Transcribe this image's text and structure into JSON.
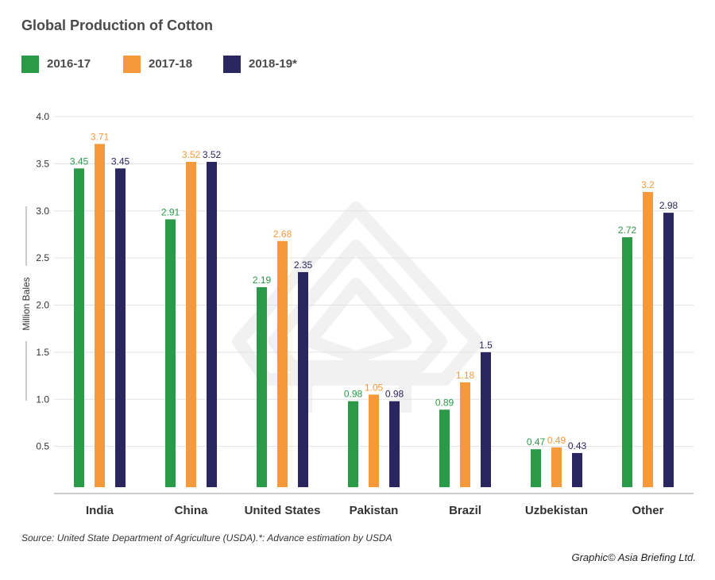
{
  "title": "Global Production of Cotton",
  "source": "Source: United State Department of Agriculture (USDA).*: Advance estimation by USDA",
  "credit": "Graphic© Asia Briefing Ltd.",
  "colors": {
    "series_1": "#2a9a48",
    "series_2": "#f6993a",
    "series_3": "#2a2660",
    "grid": "#e3e3e3",
    "axis": "#999999",
    "watermark": "#f1f1f1"
  },
  "chart_data": {
    "type": "bar",
    "title": "Global Production of Cotton",
    "xlabel": "",
    "ylabel": "Million Bales",
    "ylim": [
      0,
      4.0
    ],
    "yticks": [
      "0.5",
      "1.0",
      "1.5",
      "2.0",
      "2.5",
      "3.0",
      "3.5",
      "4.0"
    ],
    "grid": true,
    "legend_position": "top-left",
    "categories": [
      "India",
      "China",
      "United States",
      "Pakistan",
      "Brazil",
      "Uzbekistan",
      "Other"
    ],
    "series": [
      {
        "name": "2016-17",
        "values": [
          3.45,
          2.91,
          2.19,
          0.98,
          0.89,
          0.47,
          2.72
        ],
        "labels": [
          "3.45",
          "2.91",
          "2.19",
          "0.98",
          "0.89",
          "0.47",
          "2.72"
        ]
      },
      {
        "name": "2017-18",
        "values": [
          3.71,
          3.52,
          2.68,
          1.05,
          1.18,
          0.49,
          3.2
        ],
        "labels": [
          "3.71",
          "3.52",
          "2.68",
          "1.05",
          "1.18",
          "0.49",
          "3.2"
        ]
      },
      {
        "name": "2018-19*",
        "values": [
          3.45,
          3.52,
          2.35,
          0.98,
          1.5,
          0.43,
          2.98
        ],
        "labels": [
          "3.45",
          "3.52",
          "2.35",
          "0.98",
          "1.5",
          "0.43",
          "2.98"
        ]
      }
    ]
  }
}
